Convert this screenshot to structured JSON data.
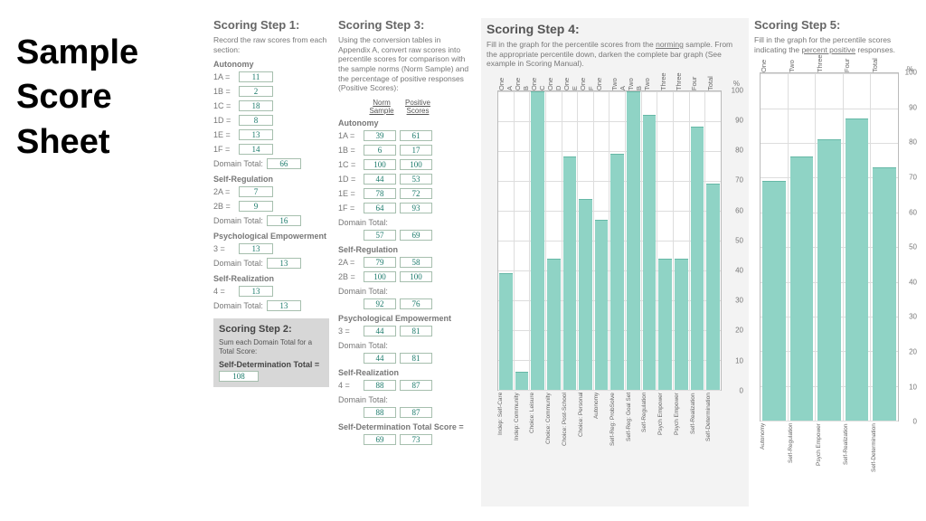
{
  "title_lines": [
    "Sample",
    "Score",
    "Sheet"
  ],
  "step1": {
    "header": "Scoring Step 1:",
    "intro": "Record the raw scores from each section:",
    "sections": [
      {
        "name": "Autonomy",
        "rows": [
          {
            "label": "1A =",
            "val": "11"
          },
          {
            "label": "1B =",
            "val": "2"
          },
          {
            "label": "1C =",
            "val": "18"
          },
          {
            "label": "1D =",
            "val": "8"
          },
          {
            "label": "1E =",
            "val": "13"
          },
          {
            "label": "1F =",
            "val": "14"
          }
        ],
        "domain_total": "66"
      },
      {
        "name": "Self-Regulation",
        "rows": [
          {
            "label": "2A =",
            "val": "7"
          },
          {
            "label": "2B =",
            "val": "9"
          }
        ],
        "domain_total": "16"
      },
      {
        "name": "Psychological Empowerment",
        "rows": [
          {
            "label": "3 =",
            "val": "13"
          }
        ],
        "domain_total": "13"
      },
      {
        "name": "Self-Realization",
        "rows": [
          {
            "label": "4 =",
            "val": "13"
          }
        ],
        "domain_total": "13"
      }
    ]
  },
  "step2": {
    "header": "Scoring Step 2:",
    "intro": "Sum each Domain Total for a Total Score:",
    "label": "Self-Determination Total =",
    "value": "108"
  },
  "step3": {
    "header": "Scoring Step 3:",
    "intro": "Using the conversion tables in Appendix A, convert raw scores into percentile scores for comparison with the sample norms (Norm Sample) and the percentage of positive responses (Positive Scores):",
    "col_hdr_left": "Norm Sample",
    "col_hdr_right": "Positive Scores",
    "sections": [
      {
        "name": "Autonomy",
        "rows": [
          {
            "label": "1A =",
            "n": "39",
            "p": "61"
          },
          {
            "label": "1B =",
            "n": "6",
            "p": "17"
          },
          {
            "label": "1C =",
            "n": "100",
            "p": "100"
          },
          {
            "label": "1D =",
            "n": "44",
            "p": "53"
          },
          {
            "label": "1E =",
            "n": "78",
            "p": "72"
          },
          {
            "label": "1F =",
            "n": "64",
            "p": "93"
          }
        ],
        "dt_n": "57",
        "dt_p": "69"
      },
      {
        "name": "Self-Regulation",
        "rows": [
          {
            "label": "2A =",
            "n": "79",
            "p": "58"
          },
          {
            "label": "2B =",
            "n": "100",
            "p": "100"
          }
        ],
        "dt_n": "92",
        "dt_p": "76"
      },
      {
        "name": "Psychological Empowerment",
        "rows": [
          {
            "label": "3 =",
            "n": "44",
            "p": "81"
          }
        ],
        "dt_n": "44",
        "dt_p": "81"
      },
      {
        "name": "Self-Realization",
        "rows": [
          {
            "label": "4 =",
            "n": "88",
            "p": "87"
          }
        ],
        "dt_n": "88",
        "dt_p": "87"
      }
    ],
    "final_label": "Self-Determination Total Score =",
    "final_n": "69",
    "final_p": "73"
  },
  "step4": {
    "header": "Scoring Step 4:",
    "intro_pre": "Fill in the graph for the percentile scores from the ",
    "intro_ul": "norming",
    "intro_post": " sample. From the appropriate percentile down, darken the complete bar graph (See example in Scoring Manual).",
    "ylim": [
      0,
      100
    ],
    "ytick_step": 10,
    "top_labels": [
      "One A",
      "One B",
      "One C",
      "One D",
      "One E",
      "One F",
      "One",
      "Two A",
      "Two B",
      "Two",
      "Three",
      "Three",
      "Four",
      "Total"
    ],
    "bot_labels": [
      "Indep: Self-Care",
      "Indep: Community",
      "Choice: Leisure",
      "Choice: Community",
      "Choice: Post-School",
      "Choice: Personal",
      "Autonomy",
      "Self-Reg: ProbSolve",
      "Self-Reg: Goal Set",
      "Self-Regulation",
      "Psych Empower",
      "Psych Empower",
      "Self-Realization",
      "Self-Determination"
    ],
    "values": [
      39,
      6,
      100,
      44,
      78,
      64,
      57,
      79,
      100,
      92,
      44,
      44,
      88,
      69
    ],
    "bar_color": "#8fd3c5",
    "grid_color": "#dddddd",
    "bg": "#ffffff"
  },
  "step5": {
    "header": "Scoring Step 5:",
    "intro_pre": "Fill in the graph for the percentile scores indicating the ",
    "intro_ul": "percent positive",
    "intro_post": " responses.",
    "ylim": [
      0,
      100
    ],
    "ytick_step": 10,
    "top_labels": [
      "One",
      "Two",
      "Three",
      "Four",
      "Total"
    ],
    "bot_labels": [
      "Autonomy",
      "Self-Regulation",
      "Psych Empower",
      "Self-Realization",
      "Self-Determination"
    ],
    "values": [
      69,
      76,
      81,
      87,
      73
    ],
    "bar_color": "#8fd3c5",
    "grid_color": "#dddddd",
    "bg": "#ffffff"
  },
  "labels": {
    "domain_total": "Domain Total:",
    "pct_top": "%",
    "pct_right": "100"
  }
}
